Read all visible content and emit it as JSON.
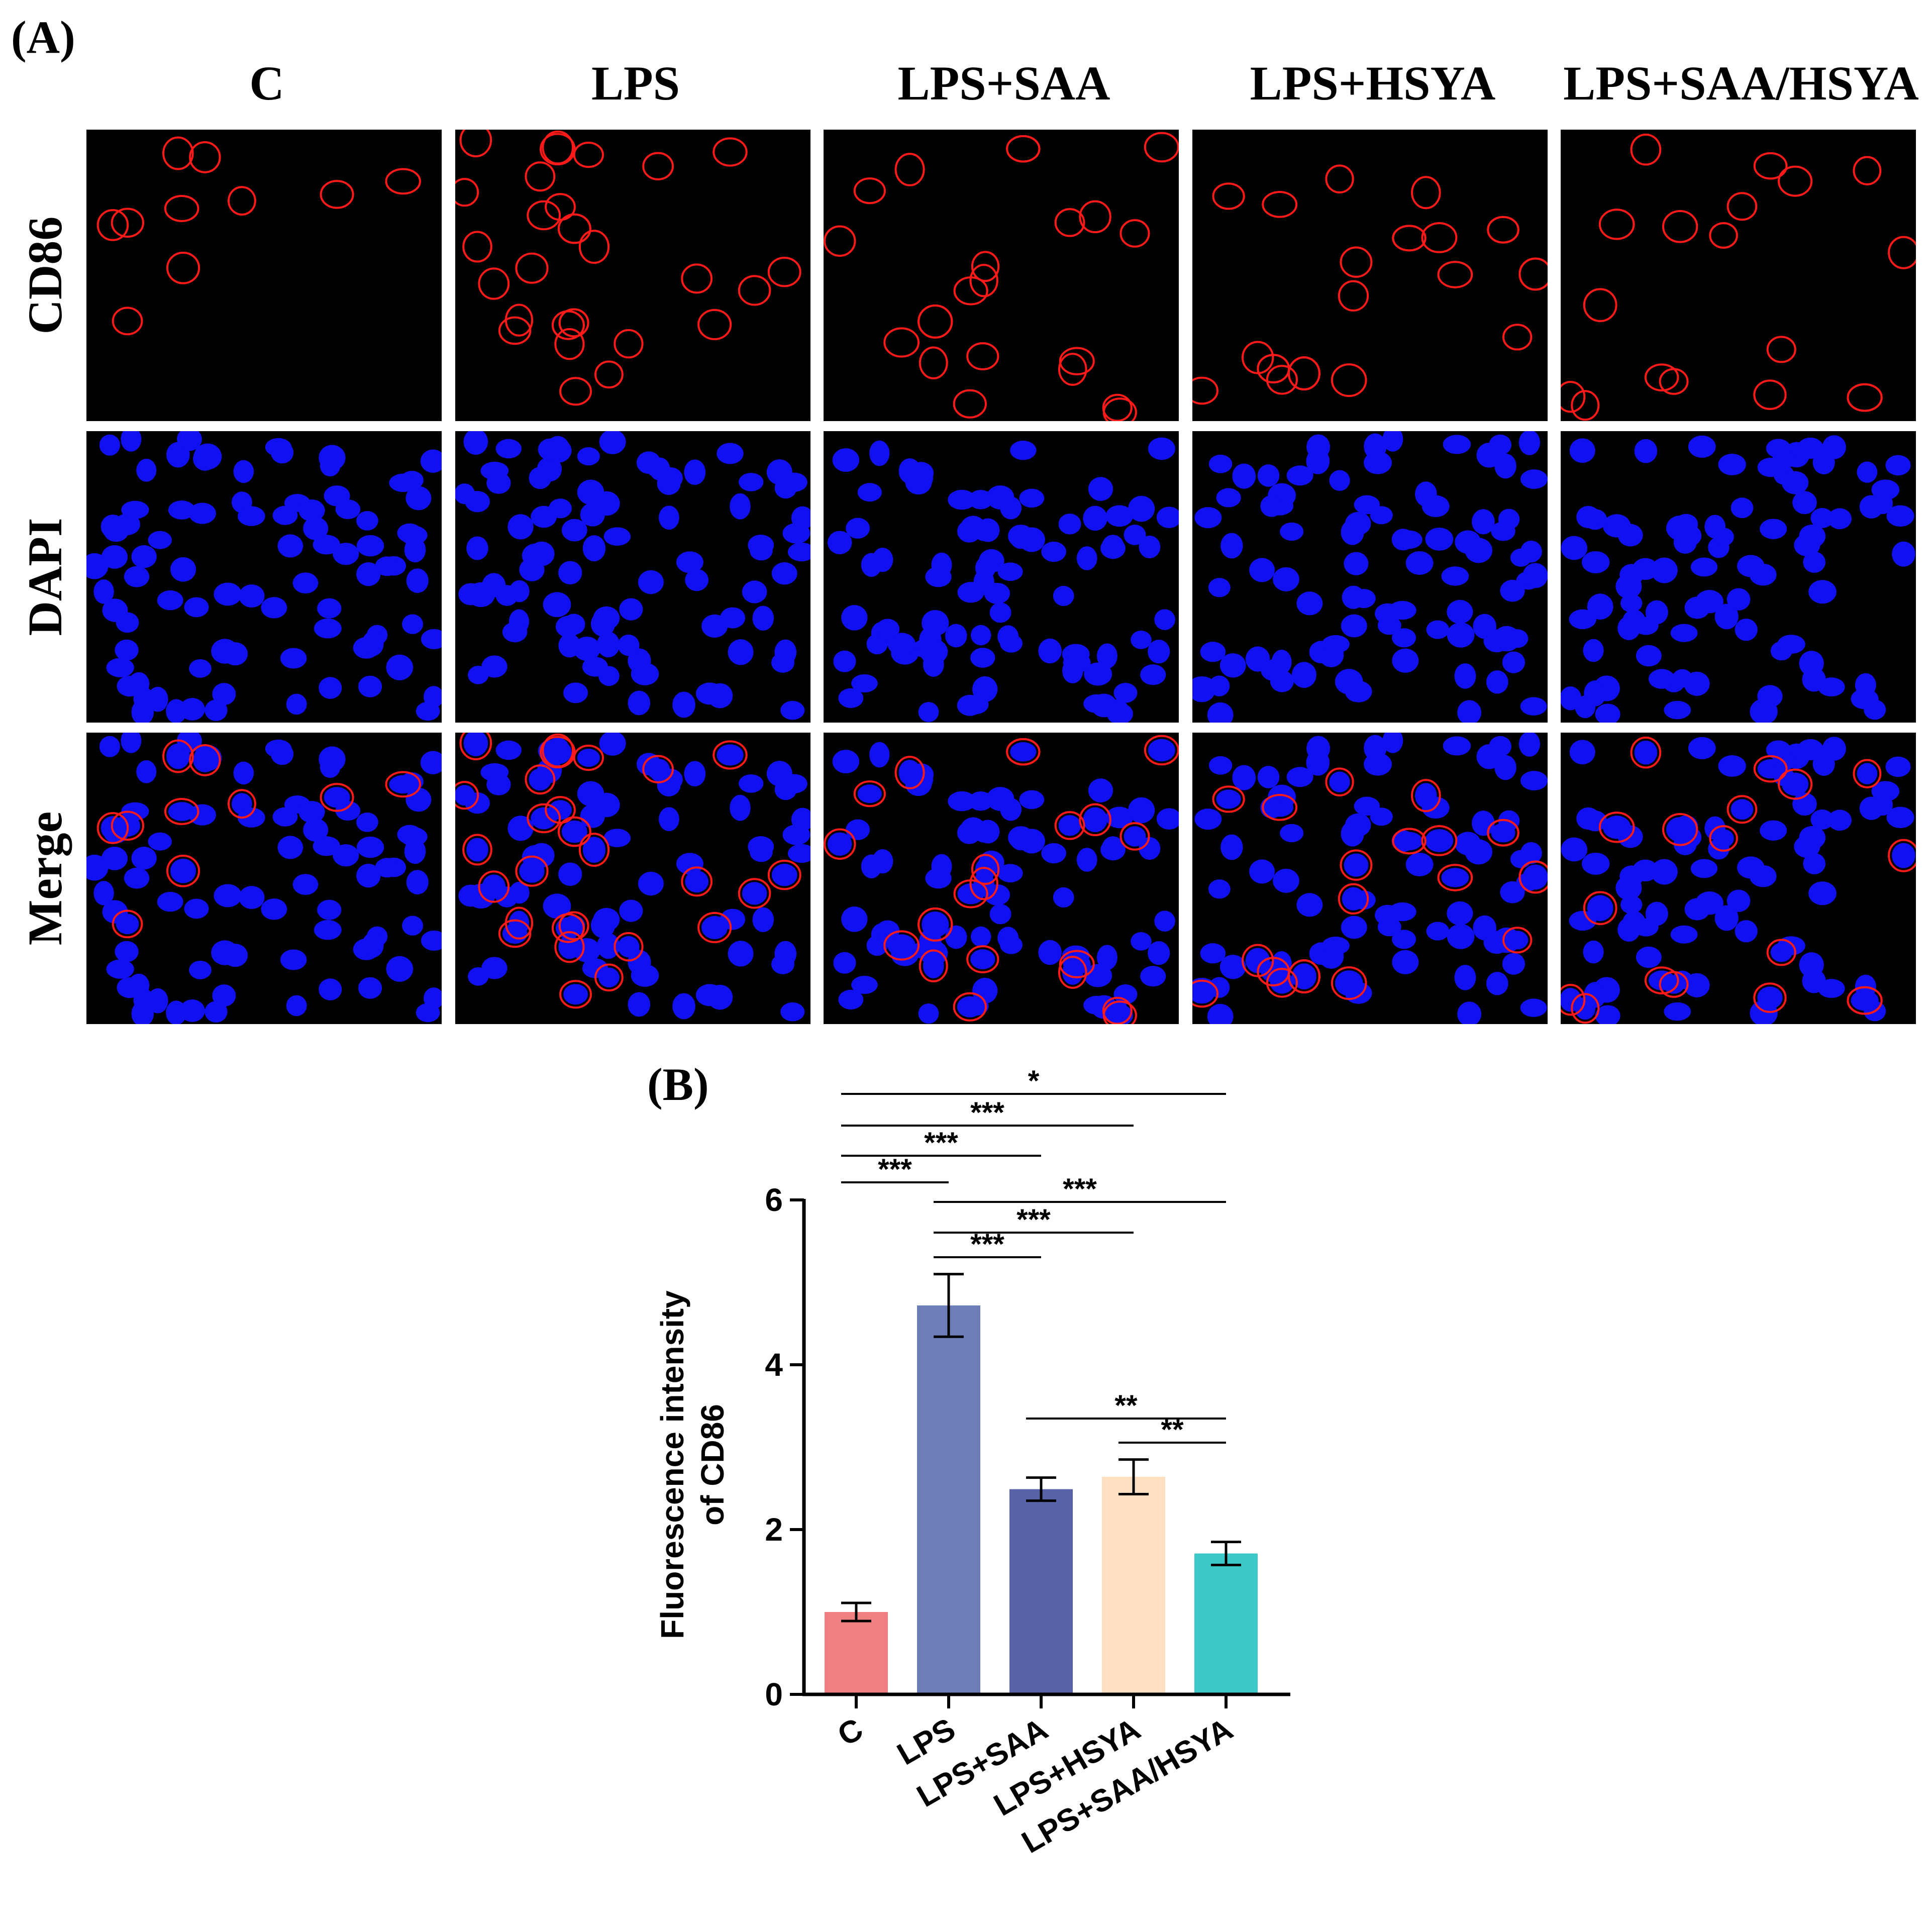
{
  "figure": {
    "panel_a_label": "(A)",
    "panel_b_label": "(B)",
    "groups": [
      "C",
      "LPS",
      "LPS+SAA",
      "LPS+HSYA",
      "LPS+SAA/HSYA"
    ],
    "channels": [
      "CD86",
      "DAPI",
      "Merge"
    ],
    "colors": {
      "cd86_stain": "#ff1a1a",
      "dapi_stain": "#1010f0",
      "image_background": "#000000"
    }
  },
  "chart_data": {
    "type": "bar",
    "categories": [
      "C",
      "LPS",
      "LPS+SAA",
      "LPS+HSYA",
      "LPS+SAA/HSYA"
    ],
    "values": [
      1.0,
      4.72,
      2.49,
      2.64,
      1.71
    ],
    "errors": [
      0.11,
      0.38,
      0.14,
      0.21,
      0.14
    ],
    "colors": [
      "#f08080",
      "#6d7fb8",
      "#5862a8",
      "#fde0c2",
      "#3cc8c6"
    ],
    "ylabel_line1": "Fluorescence intensity",
    "ylabel_line2": "of CD86",
    "ylim": [
      0,
      6
    ],
    "yticks": [
      0,
      2,
      4,
      6
    ],
    "significance": [
      {
        "from": 0,
        "to": 4,
        "label": "*"
      },
      {
        "from": 0,
        "to": 3,
        "label": "***"
      },
      {
        "from": 0,
        "to": 2,
        "label": "***"
      },
      {
        "from": 0,
        "to": 1,
        "label": "***"
      },
      {
        "from": 1,
        "to": 4,
        "label": "***"
      },
      {
        "from": 1,
        "to": 3,
        "label": "***"
      },
      {
        "from": 1,
        "to": 2,
        "label": "***"
      },
      {
        "from": 2,
        "to": 4,
        "label": "**"
      },
      {
        "from": 3,
        "to": 4,
        "label": "**"
      }
    ]
  }
}
